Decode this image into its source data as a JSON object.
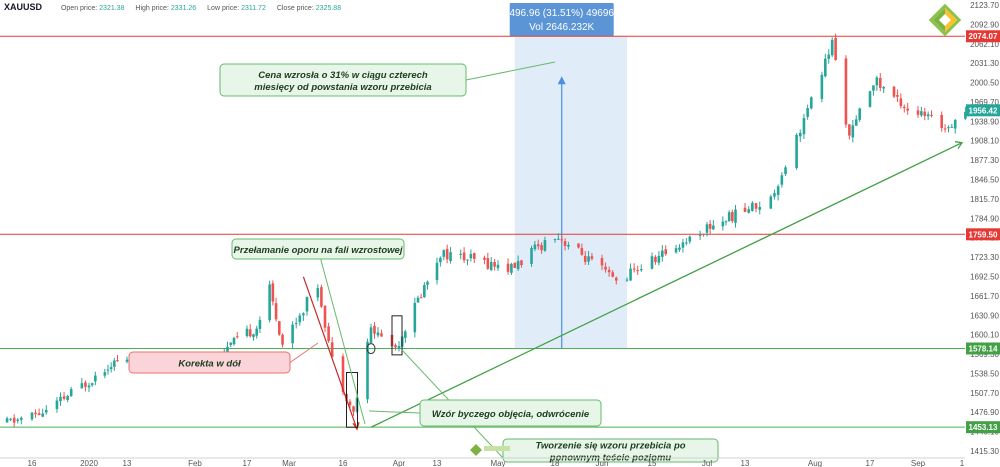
{
  "header": {
    "symbol": "XAUUSD",
    "open_label": "Open price:",
    "open_value": "2321.38",
    "high_label": "High price:",
    "high_value": "2331.26",
    "low_label": "Low price:",
    "low_value": "2311.72",
    "close_label": "Close price:",
    "close_value": "2325.88"
  },
  "logo_icon": "liteforex-diamond-logo",
  "watermark_icon": "liteforex-watermark-logo",
  "colors": {
    "up": "#26a69a",
    "down": "#ef5350",
    "level": "#e53935",
    "support": "#4caf50",
    "measure_bg": "#dbe9f7",
    "measure_line": "#4a90e2",
    "annotation_bg": "#e8f5e9",
    "annotation_border": "#66bb6a",
    "correction_bg": "#fad4d9",
    "correction_border": "#e57373"
  },
  "chart_data": {
    "type": "candlestick",
    "instrument": "XAUUSD",
    "y_ticks": [
      "2123.70",
      "2092.90",
      "2062.10",
      "2031.30",
      "2000.50",
      "1969.70",
      "1938.90",
      "1908.10",
      "1877.30",
      "1846.50",
      "1815.70",
      "1784.90",
      "1754.10",
      "1723.30",
      "1692.50",
      "1661.70",
      "1630.90",
      "1600.10",
      "1569.30",
      "1538.50",
      "1507.70",
      "1476.90",
      "1446.10",
      "1415.30"
    ],
    "ylim": [
      1415.3,
      2131.4
    ],
    "x_ticks": [
      "16",
      "2020",
      "13",
      "Feb",
      "17",
      "Mar",
      "16",
      "Apr",
      "13",
      "May",
      "18",
      "Jun",
      "15",
      "Jul",
      "13",
      "Aug",
      "17",
      "Sep",
      "1"
    ],
    "price_labels": [
      {
        "label": "2074.07",
        "value": 2074.07,
        "kind": "resistance"
      },
      {
        "label": "1956.42",
        "value": 1956.42,
        "kind": "last"
      },
      {
        "label": "1759.50",
        "value": 1759.5,
        "kind": "resistance"
      },
      {
        "label": "1578.14",
        "value": 1578.14,
        "kind": "support"
      },
      {
        "label": "1453.13",
        "value": 1453.13,
        "kind": "support"
      }
    ],
    "approx_path": [
      {
        "date": "2019-12-09",
        "price": 1460
      },
      {
        "date": "2019-12-20",
        "price": 1478
      },
      {
        "date": "2020-01-08",
        "price": 1556
      },
      {
        "date": "2020-01-20",
        "price": 1560
      },
      {
        "date": "2020-02-05",
        "price": 1558
      },
      {
        "date": "2020-02-20",
        "price": 1612
      },
      {
        "date": "2020-02-24",
        "price": 1672
      },
      {
        "date": "2020-02-28",
        "price": 1586
      },
      {
        "date": "2020-03-09",
        "price": 1680
      },
      {
        "date": "2020-03-13",
        "price": 1560
      },
      {
        "date": "2020-03-19",
        "price": 1475
      },
      {
        "date": "2020-03-24",
        "price": 1610
      },
      {
        "date": "2020-03-31",
        "price": 1580
      },
      {
        "date": "2020-04-14",
        "price": 1730
      },
      {
        "date": "2020-05-05",
        "price": 1705
      },
      {
        "date": "2020-05-18",
        "price": 1760
      },
      {
        "date": "2020-06-05",
        "price": 1685
      },
      {
        "date": "2020-07-01",
        "price": 1770
      },
      {
        "date": "2020-07-20",
        "price": 1815
      },
      {
        "date": "2020-07-31",
        "price": 1970
      },
      {
        "date": "2020-08-06",
        "price": 2064
      },
      {
        "date": "2020-08-11",
        "price": 1912
      },
      {
        "date": "2020-08-18",
        "price": 2005
      },
      {
        "date": "2020-08-28",
        "price": 1960
      },
      {
        "date": "2020-09-08",
        "price": 1930
      },
      {
        "date": "2020-09-14",
        "price": 1956
      }
    ],
    "measure_label_1": "496.96 (31.51%) 49696",
    "measure_label_2": "Vol 2646.232K",
    "annotations": [
      {
        "text_1": "Cena wzrosła o 31% w ciągu czterech",
        "text_2": "miesięcy od powstania wzoru przebicia"
      },
      {
        "text_1": "Przełamanie oporu na fali wzrostowej",
        "text_2": ""
      },
      {
        "text_1": "Korekta w dół",
        "text_2": ""
      },
      {
        "text_1": "Tworzenie się wzoru przebicia po",
        "text_2": "ponownym teście poziomu"
      },
      {
        "text_1": "Wzór byczego objęcia, odwrócenie",
        "text_2": ""
      }
    ]
  }
}
